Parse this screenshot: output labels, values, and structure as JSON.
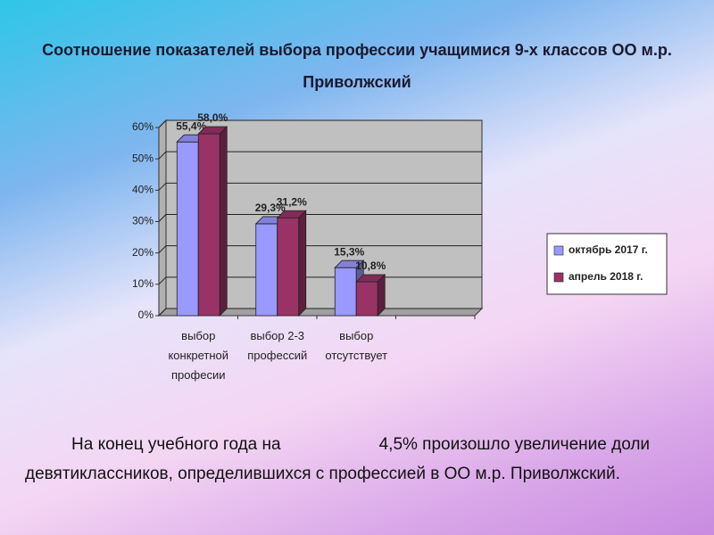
{
  "chart_data": {
    "type": "bar3d",
    "title": "Соотношение показателей выбора профессии учащимися 9-х классов ОО м.р. Приволжский",
    "categories": [
      "выбор конкретной професии",
      "выбор 2-3 профессий",
      "выбор отсутствует",
      null
    ],
    "series": [
      {
        "name": "октябрь 2017 г.",
        "color": "#9999ff",
        "values": [
          55.4,
          29.3,
          15.3,
          null
        ],
        "value_labels": [
          "55,4%",
          "29,3%",
          "15,3%",
          null
        ]
      },
      {
        "name": "апрель 2018 г.",
        "color": "#993366",
        "values": [
          58.0,
          31.2,
          10.8,
          null
        ],
        "value_labels": [
          "58,0%",
          "31,2%",
          "10,8%",
          null
        ]
      }
    ],
    "ylim": [
      0,
      60
    ],
    "yticks": [
      {
        "value": 0,
        "label": "0%"
      },
      {
        "value": 10,
        "label": "10%"
      },
      {
        "value": 20,
        "label": "20%"
      },
      {
        "value": 30,
        "label": "30%"
      },
      {
        "value": 40,
        "label": "40%"
      },
      {
        "value": 50,
        "label": "50%"
      },
      {
        "value": 60,
        "label": "60%"
      }
    ],
    "grid": true,
    "legend": "right",
    "annotations": [
      "На конец учебного года на",
      "4,5% произошло увеличение доли девятиклассников, определившихся с профессией в ОО м.р. Приволжский."
    ]
  }
}
